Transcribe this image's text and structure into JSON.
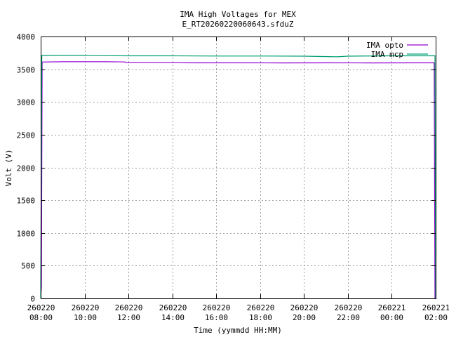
{
  "chart_data": {
    "type": "line",
    "title": "IMA High Voltages for MEX",
    "subtitle": "E_RT20260220060643.sfduZ",
    "xlabel": "Time (yymmdd HH:MM)",
    "ylabel": "Volt (V)",
    "xlim": [
      "2026-02-20 08:00",
      "2026-02-21 02:00"
    ],
    "ylim": [
      0,
      4000
    ],
    "y_ticks": [
      0,
      500,
      1000,
      1500,
      2000,
      2500,
      3000,
      3500,
      4000
    ],
    "x_ticks": [
      {
        "date": "260220",
        "time": "08:00"
      },
      {
        "date": "260220",
        "time": "10:00"
      },
      {
        "date": "260220",
        "time": "12:00"
      },
      {
        "date": "260220",
        "time": "14:00"
      },
      {
        "date": "260220",
        "time": "16:00"
      },
      {
        "date": "260220",
        "time": "18:00"
      },
      {
        "date": "260220",
        "time": "20:00"
      },
      {
        "date": "260220",
        "time": "22:00"
      },
      {
        "date": "260221",
        "time": "00:00"
      },
      {
        "date": "260221",
        "time": "02:00"
      }
    ],
    "grid": true,
    "legend_position": "top-right",
    "series": [
      {
        "name": "IMA opto",
        "color": "#9400d3",
        "points": [
          [
            "2026-02-20 08:00",
            0
          ],
          [
            "2026-02-20 08:02",
            180
          ],
          [
            "2026-02-20 08:04",
            3610
          ],
          [
            "2026-02-20 09:00",
            3615
          ],
          [
            "2026-02-20 10:00",
            3615
          ],
          [
            "2026-02-20 11:00",
            3615
          ],
          [
            "2026-02-20 11:50",
            3612
          ],
          [
            "2026-02-20 11:52",
            3600
          ],
          [
            "2026-02-20 13:00",
            3600
          ],
          [
            "2026-02-20 15:00",
            3598
          ],
          [
            "2026-02-20 17:00",
            3598
          ],
          [
            "2026-02-20 19:00",
            3597
          ],
          [
            "2026-02-20 21:00",
            3598
          ],
          [
            "2026-02-20 23:00",
            3597
          ],
          [
            "2026-02-21 01:00",
            3598
          ],
          [
            "2026-02-21 01:56",
            3598
          ],
          [
            "2026-02-21 01:58",
            0
          ]
        ]
      },
      {
        "name": "IMA mcp",
        "color": "#009e73",
        "points": [
          [
            "2026-02-20 08:00",
            0
          ],
          [
            "2026-02-20 08:03",
            3710
          ],
          [
            "2026-02-20 09:00",
            3712
          ],
          [
            "2026-02-20 10:00",
            3712
          ],
          [
            "2026-02-20 10:30",
            3708
          ],
          [
            "2026-02-20 12:00",
            3705
          ],
          [
            "2026-02-20 14:00",
            3705
          ],
          [
            "2026-02-20 16:00",
            3702
          ],
          [
            "2026-02-20 18:00",
            3702
          ],
          [
            "2026-02-20 20:00",
            3700
          ],
          [
            "2026-02-20 21:30",
            3690
          ],
          [
            "2026-02-20 22:00",
            3700
          ],
          [
            "2026-02-21 00:00",
            3705
          ],
          [
            "2026-02-21 01:00",
            3705
          ],
          [
            "2026-02-21 01:58",
            3705
          ],
          [
            "2026-02-21 02:00",
            0
          ]
        ]
      }
    ]
  }
}
